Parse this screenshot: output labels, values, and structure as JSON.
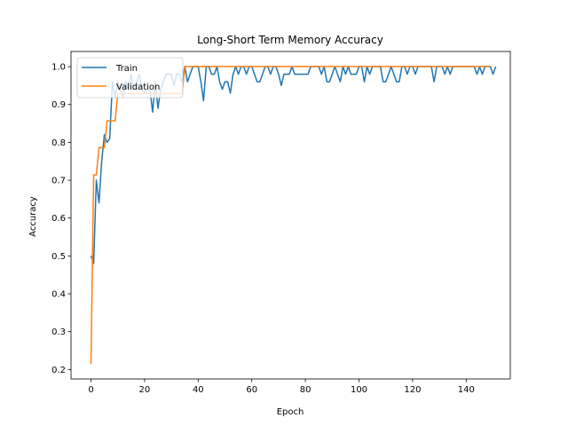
{
  "chart_data": {
    "type": "line",
    "title": "Long-Short Term Memory Accuracy",
    "xlabel": "Epoch",
    "ylabel": "Accuracy",
    "xlim": [
      -7.45,
      156.45
    ],
    "ylim": [
      0.175,
      1.04
    ],
    "xticks": [
      0,
      20,
      40,
      60,
      80,
      100,
      120,
      140
    ],
    "yticks": [
      0.2,
      0.3,
      0.4,
      0.5,
      0.6,
      0.7,
      0.8,
      0.9,
      1.0
    ],
    "ytick_labels": [
      "0.2",
      "0.3",
      "0.4",
      "0.5",
      "0.6",
      "0.7",
      "0.8",
      "0.9",
      "1.0"
    ],
    "legend_position": "upper-left",
    "series": [
      {
        "name": "Train",
        "color": "#1f77b4",
        "values": [
          0.5,
          0.48,
          0.7,
          0.64,
          0.75,
          0.82,
          0.8,
          0.81,
          0.96,
          0.92,
          0.96,
          0.94,
          0.92,
          0.96,
          0.94,
          0.98,
          0.94,
          0.96,
          0.98,
          0.94,
          0.93,
          0.94,
          0.94,
          0.88,
          0.96,
          0.89,
          0.94,
          0.96,
          0.98,
          0.98,
          0.98,
          0.95,
          0.98,
          0.98,
          0.96,
          1.0,
          0.96,
          0.98,
          1.0,
          1.0,
          1.0,
          0.96,
          0.91,
          1.0,
          1.0,
          0.98,
          0.98,
          1.0,
          0.96,
          0.94,
          0.96,
          0.96,
          0.93,
          0.98,
          1.0,
          0.98,
          1.0,
          1.0,
          0.98,
          1.0,
          1.0,
          0.98,
          0.96,
          0.96,
          0.98,
          1.0,
          1.0,
          0.98,
          1.0,
          1.0,
          0.98,
          0.95,
          0.98,
          0.98,
          0.98,
          1.0,
          0.98,
          0.98,
          0.98,
          0.98,
          0.98,
          0.98,
          1.0,
          1.0,
          1.0,
          1.0,
          0.98,
          1.0,
          0.96,
          0.96,
          0.98,
          1.0,
          0.98,
          0.96,
          1.0,
          0.98,
          1.0,
          0.98,
          0.98,
          0.98,
          1.0,
          1.0,
          0.96,
          1.0,
          0.98,
          1.0,
          1.0,
          1.0,
          1.0,
          0.96,
          0.96,
          0.98,
          1.0,
          0.98,
          0.96,
          0.96,
          1.0,
          1.0,
          0.98,
          1.0,
          1.0,
          0.98,
          1.0,
          1.0,
          1.0,
          1.0,
          1.0,
          1.0,
          0.96,
          1.0,
          1.0,
          1.0,
          0.98,
          1.0,
          0.98,
          1.0,
          1.0,
          1.0,
          1.0,
          1.0,
          1.0,
          1.0,
          1.0,
          1.0,
          0.98,
          1.0,
          0.98,
          1.0,
          1.0,
          1.0,
          0.98,
          1.0
        ]
      },
      {
        "name": "Validation",
        "color": "#ff7f0e",
        "values": [
          0.214,
          0.714,
          0.714,
          0.786,
          0.786,
          0.786,
          0.857,
          0.857,
          0.857,
          0.857,
          0.929,
          0.929,
          0.929,
          0.929,
          0.929,
          0.929,
          0.929,
          0.929,
          0.929,
          0.929,
          0.929,
          0.929,
          0.929,
          0.929,
          0.929,
          0.929,
          0.929,
          0.929,
          0.929,
          0.929,
          0.929,
          0.929,
          0.929,
          0.929,
          0.929,
          1.0,
          1.0,
          1.0,
          1.0,
          1.0,
          1.0,
          1.0,
          1.0,
          1.0,
          1.0,
          1.0,
          1.0,
          1.0,
          1.0,
          1.0,
          1.0,
          1.0,
          1.0,
          1.0,
          1.0,
          1.0,
          1.0,
          1.0,
          1.0,
          1.0,
          1.0,
          1.0,
          1.0,
          1.0,
          1.0,
          1.0,
          1.0,
          1.0,
          1.0,
          1.0,
          1.0,
          1.0,
          1.0,
          1.0,
          1.0,
          1.0,
          1.0,
          1.0,
          1.0,
          1.0,
          1.0,
          1.0,
          1.0,
          1.0,
          1.0,
          1.0,
          1.0,
          1.0,
          1.0,
          1.0,
          1.0,
          1.0,
          1.0,
          1.0,
          1.0,
          1.0,
          1.0,
          1.0,
          1.0,
          1.0,
          1.0,
          1.0,
          1.0,
          1.0,
          1.0,
          1.0,
          1.0,
          1.0,
          1.0,
          1.0,
          1.0,
          1.0,
          1.0,
          1.0,
          1.0,
          1.0,
          1.0,
          1.0,
          1.0,
          1.0,
          1.0,
          1.0,
          1.0,
          1.0,
          1.0,
          1.0,
          1.0,
          1.0,
          1.0,
          1.0,
          1.0,
          1.0,
          1.0,
          1.0,
          1.0,
          1.0,
          1.0,
          1.0,
          1.0,
          1.0,
          1.0,
          1.0,
          1.0,
          1.0,
          1.0,
          1.0,
          1.0,
          1.0,
          1.0,
          1.0
        ]
      }
    ]
  }
}
